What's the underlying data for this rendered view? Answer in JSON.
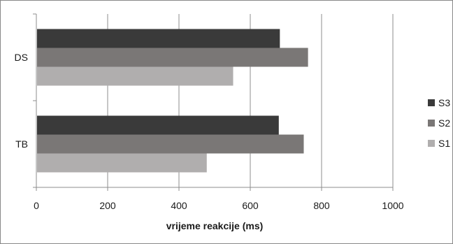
{
  "chart_data": {
    "type": "bar",
    "orientation": "horizontal",
    "categories": [
      "DS",
      "TB"
    ],
    "series": [
      {
        "name": "S3",
        "values": [
          683,
          680
        ],
        "color": "#3a3a3a"
      },
      {
        "name": "S2",
        "values": [
          762,
          750
        ],
        "color": "#7a7776"
      },
      {
        "name": "S1",
        "values": [
          552,
          478
        ],
        "color": "#b0aeae"
      }
    ],
    "xlabel": "vrijeme reakcije (ms)",
    "xlim": [
      0,
      1000
    ],
    "xticks": [
      0,
      200,
      400,
      600,
      800,
      1000
    ],
    "grid": true,
    "legend_position": "right"
  }
}
